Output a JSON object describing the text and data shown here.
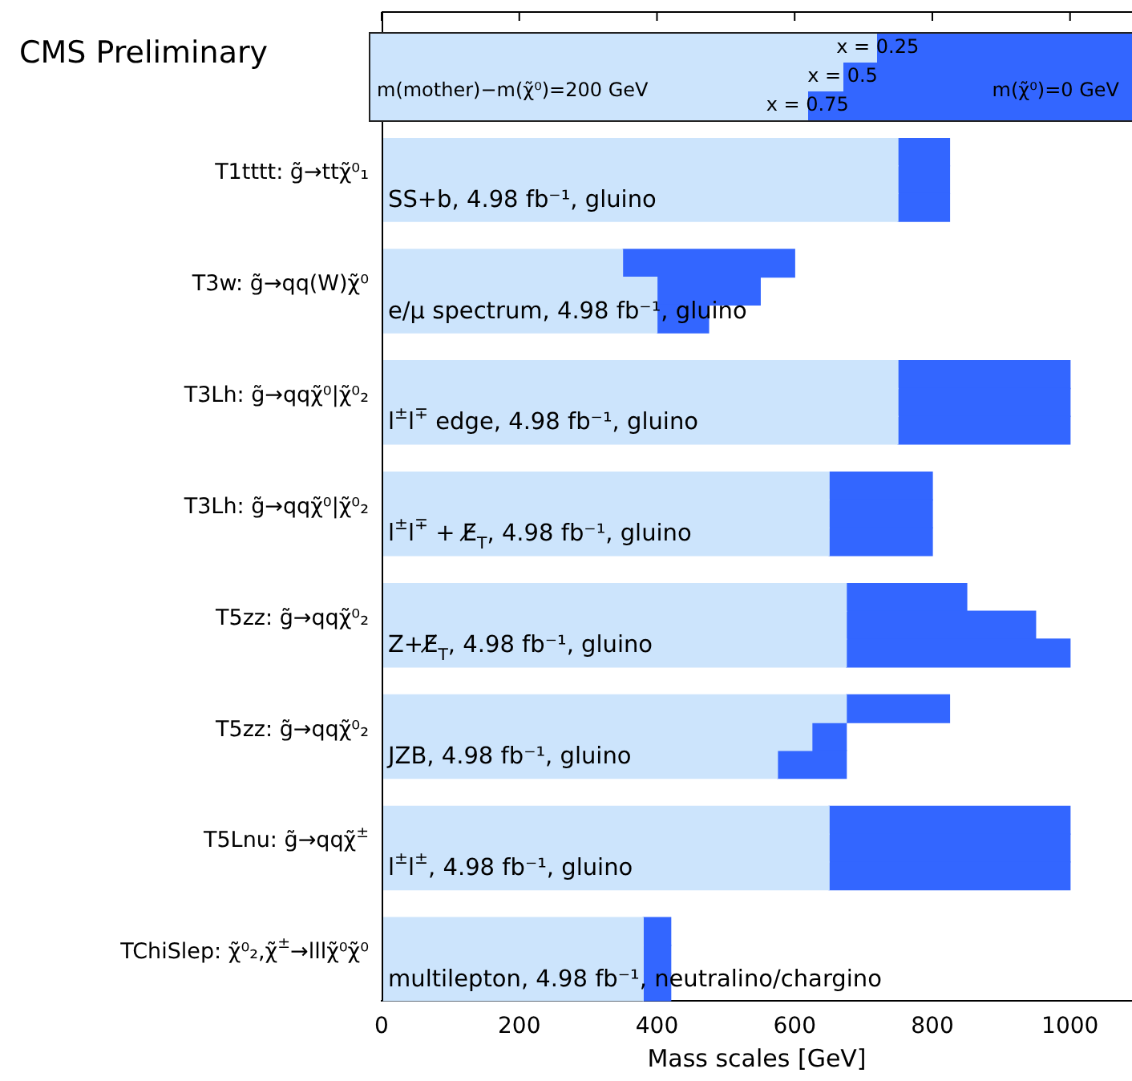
{
  "chart_data": {
    "type": "bar",
    "orientation": "horizontal",
    "title": "CMS Preliminary",
    "xlabel": "Mass scales [GeV]",
    "stacked": true,
    "categories": [
      null,
      "T1tttt: g̃→ttχ̃⁰₁",
      null,
      null,
      null,
      "T3w: g̃→qq(W)χ̃⁰",
      null,
      null,
      null,
      "T3Lh: g̃→qqχ̃⁰|χ̃⁰₂",
      null,
      null,
      null,
      "T3Lh: g̃→qqχ̃⁰|χ̃⁰₂",
      null,
      null,
      null,
      "T5zz: g̃→qqχ̃⁰₂",
      null,
      null,
      null,
      "T5zz: g̃→qqχ̃⁰₂",
      null,
      null,
      null,
      "T5Lnu: g̃→qqχ̃$^{±}$",
      null,
      null,
      null,
      "TChiSlep: χ̃⁰₂,χ̃$^{±}$→lllχ̃⁰χ̃⁰",
      null
    ],
    "series": [
      {
        "name": "m(mother)−m(χ̃⁰)=200 GeV",
        "color": "#cce4fc",
        "values": [
          750,
          750,
          750,
          null,
          350,
          400,
          400,
          null,
          750,
          750,
          750,
          null,
          650,
          650,
          650,
          null,
          675,
          675,
          675,
          null,
          675,
          625,
          575,
          null,
          650,
          650,
          650,
          null,
          380,
          380,
          380
        ]
      },
      {
        "name": "m(χ̃⁰)=0 GeV",
        "color": "#3366ff",
        "values": [
          75,
          75,
          75,
          null,
          250,
          150,
          75,
          null,
          250,
          250,
          250,
          null,
          150,
          150,
          150,
          null,
          175,
          275,
          325,
          null,
          150,
          50,
          100,
          null,
          350,
          350,
          350,
          null,
          40,
          40,
          40
        ]
      }
    ],
    "xlim": [
      0,
      1090
    ],
    "xticks": [
      0,
      200,
      400,
      600,
      800,
      1000
    ],
    "legend": "top",
    "annotations": [
      "SS+b, 4.98 fb⁻¹, gluino",
      "e/μ spectrum, 4.98 fb⁻¹, gluino",
      "l$^{±}$l$^{∓}$ edge, 4.98 fb⁻¹, gluino",
      "l$^{±}$l$^{∓}$ + E̸$_{T}$, 4.98 fb⁻¹, gluino",
      "Z+E̸$_{T}$, 4.98 fb⁻¹, gluino",
      "JZB, 4.98 fb⁻¹, gluino",
      "l$^{±}$l$^{±}$, 4.98 fb⁻¹, gluino",
      "multilepton, 4.98 fb⁻¹, neutralino/chargino",
      "x = 0.25",
      "x = 0.5",
      "x = 0.75"
    ]
  }
}
